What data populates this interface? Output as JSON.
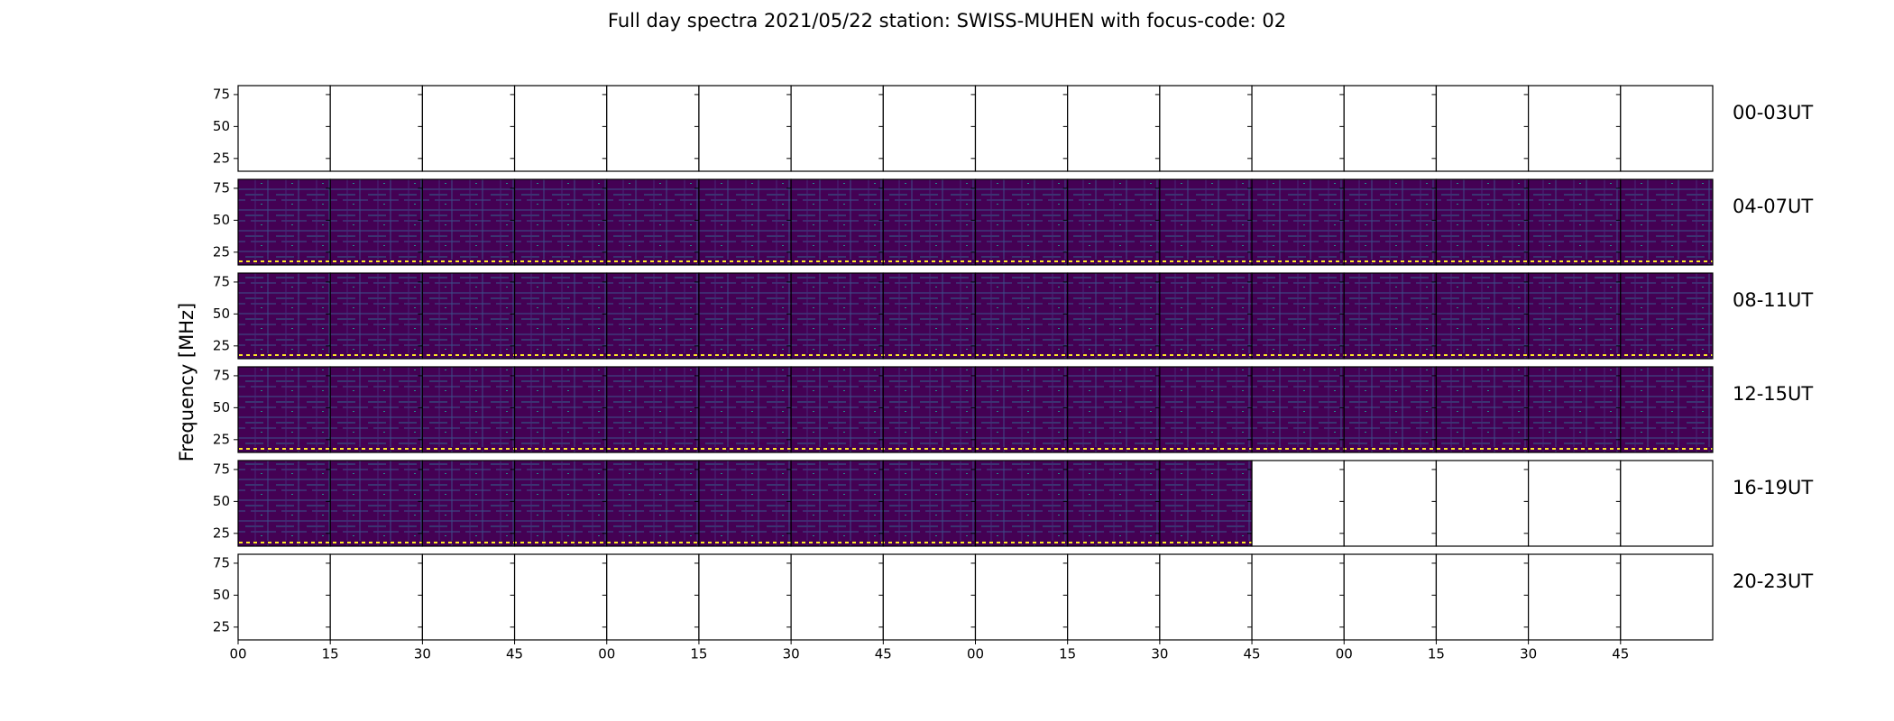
{
  "chart_data": {
    "type": "spectra-grid",
    "title": "Full day spectra 2021/05/22 station: SWISS-MUHEN with focus-code: 02",
    "ylabel": "Frequency [MHz]",
    "ylim": [
      15,
      82
    ],
    "yticks": [
      25,
      50,
      75
    ],
    "xticks": [
      "00",
      "15",
      "30",
      "45",
      "00",
      "15",
      "30",
      "45",
      "00",
      "15",
      "30",
      "45",
      "00",
      "15",
      "30",
      "45"
    ],
    "rows": [
      {
        "label": "00-03UT",
        "panels": [
          false,
          false,
          false,
          false,
          false,
          false,
          false,
          false,
          false,
          false,
          false,
          false,
          false,
          false,
          false,
          false
        ]
      },
      {
        "label": "04-07UT",
        "panels": [
          true,
          true,
          true,
          true,
          true,
          true,
          true,
          true,
          true,
          true,
          true,
          true,
          true,
          true,
          true,
          true
        ]
      },
      {
        "label": "08-11UT",
        "panels": [
          true,
          true,
          true,
          true,
          true,
          true,
          true,
          true,
          true,
          true,
          true,
          true,
          true,
          true,
          true,
          true
        ]
      },
      {
        "label": "12-15UT",
        "panels": [
          true,
          true,
          true,
          true,
          true,
          true,
          true,
          true,
          true,
          true,
          true,
          true,
          true,
          true,
          true,
          true
        ]
      },
      {
        "label": "16-19UT",
        "panels": [
          true,
          true,
          true,
          true,
          true,
          true,
          true,
          true,
          true,
          true,
          true,
          false,
          false,
          false,
          false,
          false
        ]
      },
      {
        "label": "20-23UT",
        "panels": [
          false,
          false,
          false,
          false,
          false,
          false,
          false,
          false,
          false,
          false,
          false,
          false,
          false,
          false,
          false,
          false
        ]
      }
    ]
  }
}
